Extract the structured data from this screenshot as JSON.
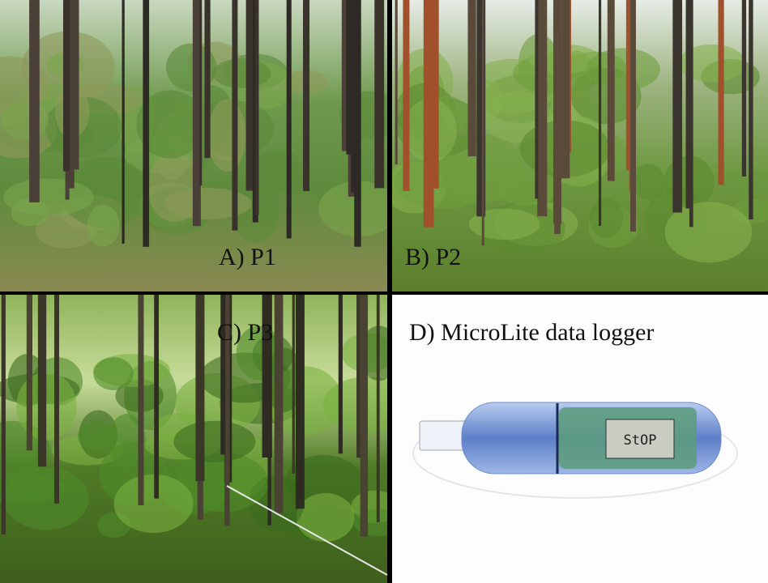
{
  "panels": [
    {
      "label": "A) P1"
    },
    {
      "label": "B) P2"
    },
    {
      "label": "C) P3"
    },
    {
      "label": "D) MicroLite data logger",
      "display": "StOP"
    }
  ]
}
